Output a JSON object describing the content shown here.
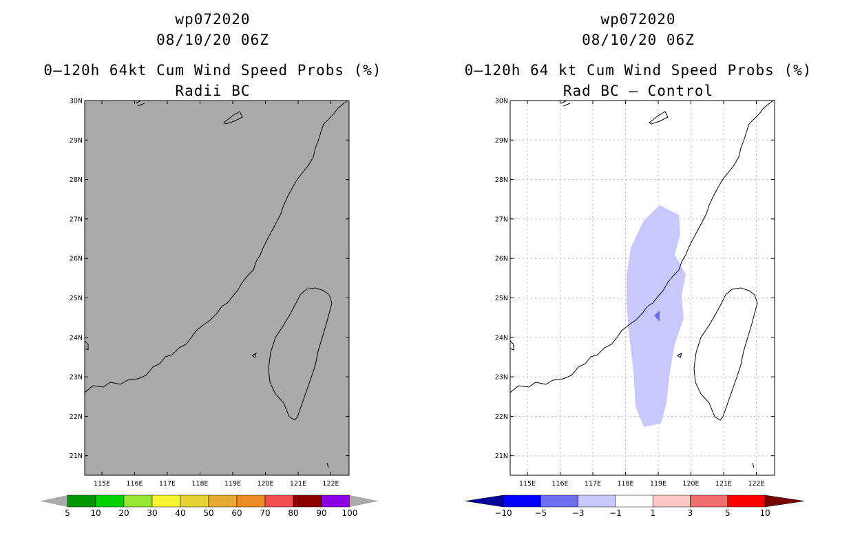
{
  "left_panel": {
    "storm_id": "wp072020",
    "datetime": "08/10/20 06Z",
    "product": "0–120h 64kt Cum Wind Speed Probs (%)",
    "subtitle": "Radii BC",
    "colorbar": {
      "labels": [
        "5",
        "10",
        "20",
        "30",
        "40",
        "50",
        "60",
        "70",
        "80",
        "90",
        "100"
      ],
      "colors": [
        "#009600",
        "#00d200",
        "#96e632",
        "#f5f532",
        "#e6d232",
        "#e6aa32",
        "#f08c28",
        "#f05050",
        "#8c0000",
        "#8c00e6"
      ],
      "end_color": "#aaaaaa"
    }
  },
  "right_panel": {
    "storm_id": "wp072020",
    "datetime": "08/10/20 06Z",
    "product": "0–120h 64 kt Cum Wind Speed Probs (%)",
    "subtitle": "Rad BC – Control",
    "colorbar": {
      "labels": [
        "−10",
        "−5",
        "−3",
        "−1",
        "1",
        "3",
        "5",
        "10"
      ],
      "colors": [
        "#0000ff",
        "#6e6ef0",
        "#c8c8ff",
        "#ffffff",
        "#ffc8c8",
        "#f06e6e",
        "#ff0000"
      ],
      "end_left": "#00009b",
      "end_right": "#780000"
    }
  },
  "map": {
    "lat_labels": [
      "30N",
      "29N",
      "28N",
      "27N",
      "26N",
      "25N",
      "24N",
      "23N",
      "22N",
      "21N"
    ],
    "lon_labels": [
      "115E",
      "116E",
      "117E",
      "118E",
      "119E",
      "120E",
      "121E",
      "122E"
    ],
    "left_background": "#aaaaaa",
    "diff_shade_color": "#c8c8ff",
    "diff_dark_color": "#6e6ef0"
  }
}
